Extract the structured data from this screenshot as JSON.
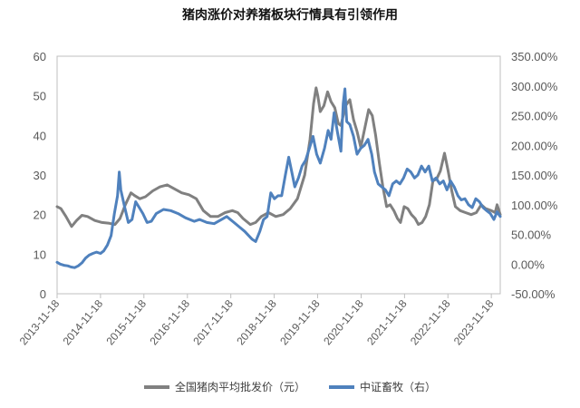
{
  "chart_data": {
    "type": "line",
    "title": "猪肉涨价对养猪板块行情具有引领作用",
    "xlabel": "",
    "ylabel_left": "",
    "ylabel_right": "",
    "x_range": [
      "2013-11-18",
      "2024-02-01"
    ],
    "x_tick_labels": [
      "2013-11-18",
      "2014-11-18",
      "2015-11-18",
      "2016-11-18",
      "2017-11-18",
      "2018-11-18",
      "2019-11-18",
      "2020-11-18",
      "2021-11-18",
      "2022-11-18",
      "2023-11-18"
    ],
    "ylim_left": [
      0,
      60
    ],
    "y_ticks_left": [
      "0",
      "10",
      "20",
      "30",
      "40",
      "50",
      "60"
    ],
    "ylim_right": [
      -50,
      350
    ],
    "y_ticks_right": [
      "-50.00%",
      "0.00%",
      "50.00%",
      "100.00%",
      "150.00%",
      "200.00%",
      "250.00%",
      "300.00%",
      "350.00%"
    ],
    "grid": false,
    "legend_position": "bottom",
    "series": [
      {
        "name": "全国猪肉平均批发价（元）",
        "axis": "left",
        "color": "#808080",
        "points": [
          [
            "2013-11-18",
            22.0
          ],
          [
            "2013-12-20",
            21.5
          ],
          [
            "2014-02-01",
            19.5
          ],
          [
            "2014-03-20",
            17.0
          ],
          [
            "2014-05-01",
            18.5
          ],
          [
            "2014-06-15",
            19.8
          ],
          [
            "2014-08-01",
            19.5
          ],
          [
            "2014-10-01",
            18.5
          ],
          [
            "2014-12-01",
            18.0
          ],
          [
            "2015-02-01",
            17.8
          ],
          [
            "2015-03-20",
            17.5
          ],
          [
            "2015-05-01",
            19.0
          ],
          [
            "2015-06-15",
            22.5
          ],
          [
            "2015-08-01",
            25.5
          ],
          [
            "2015-09-01",
            24.8
          ],
          [
            "2015-10-15",
            24.0
          ],
          [
            "2015-12-01",
            24.5
          ],
          [
            "2016-02-01",
            26.0
          ],
          [
            "2016-04-01",
            27.0
          ],
          [
            "2016-06-01",
            27.5
          ],
          [
            "2016-08-01",
            26.5
          ],
          [
            "2016-10-01",
            25.5
          ],
          [
            "2016-12-01",
            25.0
          ],
          [
            "2017-02-01",
            24.0
          ],
          [
            "2017-04-01",
            21.0
          ],
          [
            "2017-06-01",
            19.5
          ],
          [
            "2017-08-01",
            19.5
          ],
          [
            "2017-10-01",
            20.5
          ],
          [
            "2017-12-01",
            21.0
          ],
          [
            "2018-01-15",
            20.5
          ],
          [
            "2018-03-01",
            19.0
          ],
          [
            "2018-05-01",
            17.5
          ],
          [
            "2018-06-15",
            18.0
          ],
          [
            "2018-08-01",
            19.5
          ],
          [
            "2018-10-01",
            20.5
          ],
          [
            "2018-12-01",
            19.5
          ],
          [
            "2019-02-01",
            20.0
          ],
          [
            "2019-04-01",
            21.5
          ],
          [
            "2019-06-01",
            24.0
          ],
          [
            "2019-08-01",
            30.0
          ],
          [
            "2019-09-15",
            39.0
          ],
          [
            "2019-10-15",
            48.0
          ],
          [
            "2019-11-05",
            52.0
          ],
          [
            "2019-11-20",
            50.0
          ],
          [
            "2019-12-10",
            46.0
          ],
          [
            "2020-01-10",
            47.5
          ],
          [
            "2020-02-10",
            51.0
          ],
          [
            "2020-03-10",
            48.5
          ],
          [
            "2020-04-10",
            47.0
          ],
          [
            "2020-05-10",
            43.0
          ],
          [
            "2020-06-01",
            42.5
          ],
          [
            "2020-07-10",
            47.5
          ],
          [
            "2020-08-15",
            49.0
          ],
          [
            "2020-09-15",
            44.0
          ],
          [
            "2020-10-15",
            41.0
          ],
          [
            "2020-11-15",
            37.0
          ],
          [
            "2020-12-20",
            42.0
          ],
          [
            "2021-01-20",
            46.5
          ],
          [
            "2021-02-20",
            45.0
          ],
          [
            "2021-03-20",
            40.0
          ],
          [
            "2021-04-20",
            33.0
          ],
          [
            "2021-05-20",
            27.0
          ],
          [
            "2021-06-20",
            22.0
          ],
          [
            "2021-07-20",
            22.5
          ],
          [
            "2021-08-20",
            21.0
          ],
          [
            "2021-09-20",
            19.0
          ],
          [
            "2021-10-15",
            18.0
          ],
          [
            "2021-11-15",
            22.0
          ],
          [
            "2021-12-15",
            21.5
          ],
          [
            "2022-01-15",
            20.0
          ],
          [
            "2022-02-15",
            19.0
          ],
          [
            "2022-03-15",
            17.5
          ],
          [
            "2022-04-15",
            18.0
          ],
          [
            "2022-05-15",
            19.5
          ],
          [
            "2022-06-15",
            22.5
          ],
          [
            "2022-07-15",
            28.5
          ],
          [
            "2022-08-15",
            29.0
          ],
          [
            "2022-09-15",
            31.0
          ],
          [
            "2022-10-20",
            35.5
          ],
          [
            "2022-11-20",
            31.0
          ],
          [
            "2022-12-20",
            26.0
          ],
          [
            "2023-01-20",
            22.0
          ],
          [
            "2023-03-01",
            21.0
          ],
          [
            "2023-04-15",
            20.5
          ],
          [
            "2023-06-01",
            20.0
          ],
          [
            "2023-07-15",
            20.5
          ],
          [
            "2023-08-25",
            22.5
          ],
          [
            "2023-10-01",
            21.5
          ],
          [
            "2023-11-18",
            21.0
          ],
          [
            "2023-12-20",
            20.5
          ],
          [
            "2024-01-05",
            22.5
          ],
          [
            "2024-02-01",
            20.0
          ]
        ]
      },
      {
        "name": "中证畜牧（右）",
        "axis": "right",
        "color": "#4f81bd",
        "points": [
          [
            "2013-11-18",
            3
          ],
          [
            "2013-12-15",
            0
          ],
          [
            "2014-01-15",
            -2
          ],
          [
            "2014-02-15",
            -3
          ],
          [
            "2014-03-15",
            -5
          ],
          [
            "2014-04-15",
            -6
          ],
          [
            "2014-05-15",
            -3
          ],
          [
            "2014-06-15",
            2
          ],
          [
            "2014-07-15",
            10
          ],
          [
            "2014-08-15",
            15
          ],
          [
            "2014-09-15",
            18
          ],
          [
            "2014-10-15",
            20
          ],
          [
            "2014-11-18",
            18
          ],
          [
            "2014-12-15",
            22
          ],
          [
            "2015-01-15",
            32
          ],
          [
            "2015-02-15",
            48
          ],
          [
            "2015-03-15",
            85
          ],
          [
            "2015-04-10",
            115
          ],
          [
            "2015-04-25",
            155
          ],
          [
            "2015-05-08",
            125
          ],
          [
            "2015-06-10",
            95
          ],
          [
            "2015-07-10",
            70
          ],
          [
            "2015-08-10",
            75
          ],
          [
            "2015-09-10",
            105
          ],
          [
            "2015-10-10",
            95
          ],
          [
            "2015-11-10",
            85
          ],
          [
            "2015-12-15",
            70
          ],
          [
            "2016-01-20",
            72
          ],
          [
            "2016-03-01",
            85
          ],
          [
            "2016-05-01",
            92
          ],
          [
            "2016-07-01",
            90
          ],
          [
            "2016-09-01",
            85
          ],
          [
            "2016-11-01",
            78
          ],
          [
            "2017-01-15",
            72
          ],
          [
            "2017-03-01",
            75
          ],
          [
            "2017-05-01",
            70
          ],
          [
            "2017-07-01",
            68
          ],
          [
            "2017-09-01",
            75
          ],
          [
            "2017-10-15",
            80
          ],
          [
            "2017-12-15",
            70
          ],
          [
            "2018-02-01",
            62
          ],
          [
            "2018-03-15",
            55
          ],
          [
            "2018-05-15",
            42
          ],
          [
            "2018-06-15",
            38
          ],
          [
            "2018-07-20",
            55
          ],
          [
            "2018-08-20",
            75
          ],
          [
            "2018-09-20",
            80
          ],
          [
            "2018-10-20",
            120
          ],
          [
            "2018-11-20",
            110
          ],
          [
            "2018-12-20",
            115
          ],
          [
            "2019-01-20",
            115
          ],
          [
            "2019-02-20",
            150
          ],
          [
            "2019-03-20",
            180
          ],
          [
            "2019-04-10",
            160
          ],
          [
            "2019-05-10",
            130
          ],
          [
            "2019-06-10",
            145
          ],
          [
            "2019-07-10",
            165
          ],
          [
            "2019-08-10",
            175
          ],
          [
            "2019-09-10",
            195
          ],
          [
            "2019-10-10",
            215
          ],
          [
            "2019-11-10",
            185
          ],
          [
            "2019-12-10",
            170
          ],
          [
            "2020-01-15",
            195
          ],
          [
            "2020-02-15",
            225
          ],
          [
            "2020-03-10",
            210
          ],
          [
            "2020-04-05",
            255
          ],
          [
            "2020-05-05",
            220
          ],
          [
            "2020-06-01",
            190
          ],
          [
            "2020-06-20",
            270
          ],
          [
            "2020-07-05",
            295
          ],
          [
            "2020-07-20",
            240
          ],
          [
            "2020-08-15",
            235
          ],
          [
            "2020-09-15",
            215
          ],
          [
            "2020-10-15",
            185
          ],
          [
            "2020-11-15",
            195
          ],
          [
            "2020-12-15",
            200
          ],
          [
            "2021-01-15",
            210
          ],
          [
            "2021-02-15",
            185
          ],
          [
            "2021-03-10",
            155
          ],
          [
            "2021-04-10",
            135
          ],
          [
            "2021-05-10",
            130
          ],
          [
            "2021-06-10",
            125
          ],
          [
            "2021-07-10",
            115
          ],
          [
            "2021-08-10",
            135
          ],
          [
            "2021-09-10",
            140
          ],
          [
            "2021-10-10",
            135
          ],
          [
            "2021-11-10",
            145
          ],
          [
            "2021-12-10",
            160
          ],
          [
            "2022-01-10",
            155
          ],
          [
            "2022-02-10",
            145
          ],
          [
            "2022-03-10",
            150
          ],
          [
            "2022-04-10",
            165
          ],
          [
            "2022-05-10",
            155
          ],
          [
            "2022-06-10",
            165
          ],
          [
            "2022-07-10",
            140
          ],
          [
            "2022-08-10",
            145
          ],
          [
            "2022-09-10",
            135
          ],
          [
            "2022-10-10",
            140
          ],
          [
            "2022-11-10",
            125
          ],
          [
            "2022-12-10",
            140
          ],
          [
            "2023-01-10",
            130
          ],
          [
            "2023-02-10",
            115
          ],
          [
            "2023-03-10",
            108
          ],
          [
            "2023-04-10",
            110
          ],
          [
            "2023-05-10",
            100
          ],
          [
            "2023-06-10",
            95
          ],
          [
            "2023-07-10",
            110
          ],
          [
            "2023-08-10",
            105
          ],
          [
            "2023-09-10",
            95
          ],
          [
            "2023-10-10",
            90
          ],
          [
            "2023-11-10",
            85
          ],
          [
            "2023-12-10",
            75
          ],
          [
            "2024-01-05",
            88
          ],
          [
            "2024-02-01",
            80
          ]
        ]
      }
    ]
  }
}
